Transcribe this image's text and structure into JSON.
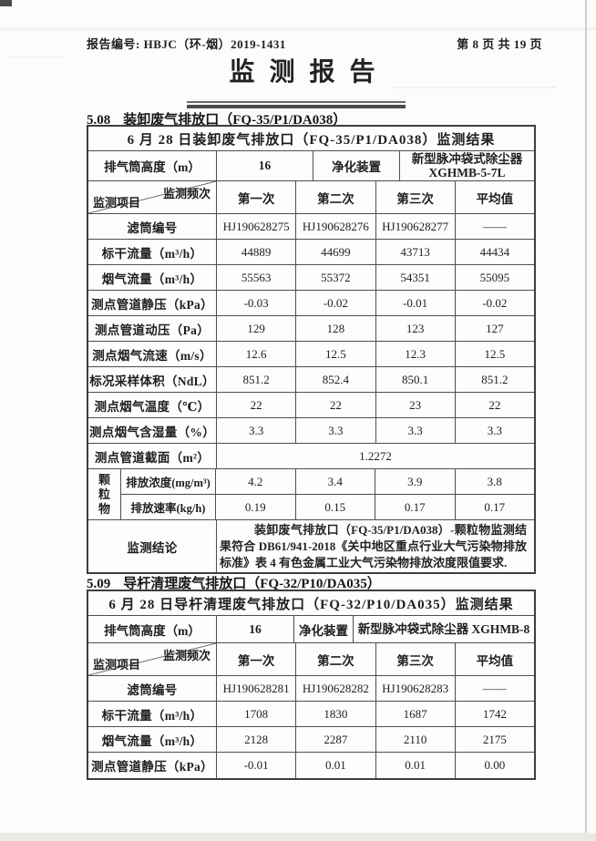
{
  "colors": {
    "ink": "#1e1e1e",
    "table_line": "#4e4e4e"
  },
  "header": {
    "report_no": "报告编号: HBJC（环-烟）2019-1431",
    "page_info": "第 8 页 共 19 页"
  },
  "title": "监测报告",
  "sections": [
    {
      "heading_no": "5.08",
      "heading_text": "装卸废气排放口（FQ-35/P1/DA038）",
      "table": {
        "title": "6 月 28 日装卸废气排放口（FQ-35/P1/DA038）监测结果",
        "info_row": {
          "stack_label": "排气筒高度（m）",
          "stack_value": "16",
          "purifier_label": "净化装置",
          "purifier_value": "新型脉冲袋式除尘器\nXGHMB-5-7L"
        },
        "freq_header": {
          "top_right": "监测频次",
          "bottom_left": "监测项目",
          "columns": [
            "第一次",
            "第二次",
            "第三次",
            "平均值"
          ]
        },
        "rows": [
          {
            "type": "simple",
            "label": "滤筒编号",
            "values": [
              "HJ190628275",
              "HJ190628276",
              "HJ190628277",
              "——"
            ]
          },
          {
            "type": "simple",
            "label": "标干流量（m³/h）",
            "values": [
              "44889",
              "44699",
              "43713",
              "44434"
            ]
          },
          {
            "type": "simple",
            "label": "烟气流量（m³/h）",
            "values": [
              "55563",
              "55372",
              "54351",
              "55095"
            ]
          },
          {
            "type": "simple",
            "label": "测点管道静压（kPa）",
            "values": [
              "-0.03",
              "-0.02",
              "-0.01",
              "-0.02"
            ]
          },
          {
            "type": "simple",
            "label": "测点管道动压（Pa）",
            "values": [
              "129",
              "128",
              "123",
              "127"
            ]
          },
          {
            "type": "simple",
            "label": "测点烟气流速（m/s）",
            "values": [
              "12.6",
              "12.5",
              "12.3",
              "12.5"
            ]
          },
          {
            "type": "simple",
            "label": "标况采样体积（NdL）",
            "values": [
              "851.2",
              "852.4",
              "850.1",
              "851.2"
            ]
          },
          {
            "type": "simple",
            "label": "测点烟气温度（℃）",
            "values": [
              "22",
              "22",
              "23",
              "22"
            ]
          },
          {
            "type": "simple",
            "label": "测点烟气含湿量（%）",
            "values": [
              "3.3",
              "3.3",
              "3.3",
              "3.3"
            ]
          },
          {
            "type": "span",
            "label": "测点管道截面（m²）",
            "value": "1.2272"
          },
          {
            "type": "group",
            "group_label": "颗粒物",
            "sub_rows": [
              {
                "label": "排放浓度(mg/m³)",
                "values": [
                  "4.2",
                  "3.4",
                  "3.9",
                  "3.8"
                ]
              },
              {
                "label": "排放速率(kg/h)",
                "values": [
                  "0.19",
                  "0.15",
                  "0.17",
                  "0.17"
                ]
              }
            ]
          },
          {
            "type": "conclusion",
            "label": "监测结论",
            "text": "装卸废气排放口（FQ-35/P1/DA038）-颗粒物监测结果符合 DB61/941-2018《关中地区重点行业大气污染物排放标准》表 4 有色金属工业大气污染物排放浓度限值要求."
          }
        ]
      }
    },
    {
      "heading_no": "5.09",
      "heading_text": "导杆清理废气排放口（FQ-32/P10/DA035）",
      "table": {
        "title": "6 月 28 日导杆清理废气排放口（FQ-32/P10/DA035）监测结果",
        "info_row": {
          "stack_label": "排气筒高度（m）",
          "stack_value": "16",
          "purifier_label": "净化装置",
          "purifier_value": "新型脉冲袋式除尘器 XGHMB-8"
        },
        "freq_header": {
          "top_right": "监测频次",
          "bottom_left": "监测项目",
          "columns": [
            "第一次",
            "第二次",
            "第三次",
            "平均值"
          ]
        },
        "rows": [
          {
            "type": "simple",
            "label": "滤筒编号",
            "values": [
              "HJ190628281",
              "HJ190628282",
              "HJ190628283",
              "——"
            ]
          },
          {
            "type": "simple",
            "label": "标干流量（m³/h）",
            "values": [
              "1708",
              "1830",
              "1687",
              "1742"
            ]
          },
          {
            "type": "simple",
            "label": "烟气流量（m³/h）",
            "values": [
              "2128",
              "2287",
              "2110",
              "2175"
            ]
          },
          {
            "type": "simple",
            "label": "测点管道静压（kPa）",
            "values": [
              "-0.01",
              "0.01",
              "0.01",
              "0.00"
            ]
          }
        ]
      }
    }
  ]
}
